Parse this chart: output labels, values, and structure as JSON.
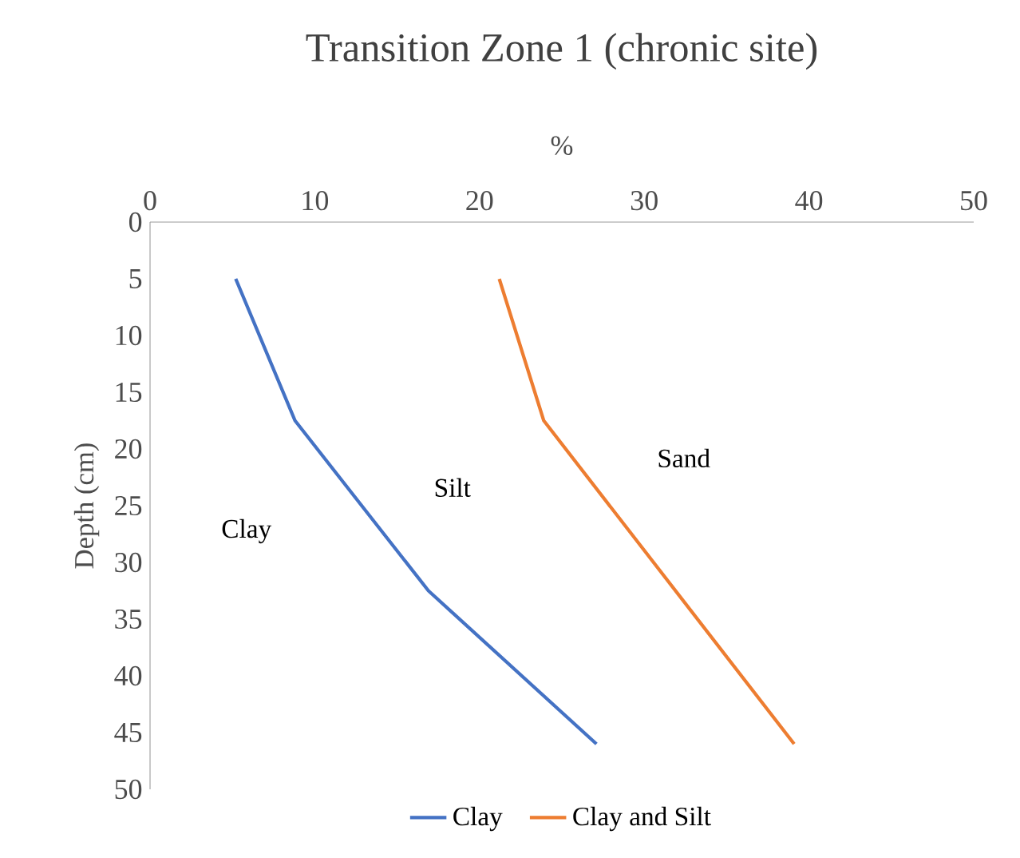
{
  "chart_data": {
    "type": "line",
    "title": "Transition Zone 1 (chronic site)",
    "xlabel": "%",
    "ylabel": "Depth (cm)",
    "series": [
      {
        "name": "Clay",
        "color": "#4472c4",
        "x": [
          5.2,
          8.8,
          16.9,
          27.1
        ],
        "values": [
          5,
          17.5,
          32.5,
          46
        ]
      },
      {
        "name": "Clay and Silt",
        "color": "#ed7d31",
        "x": [
          21.2,
          23.9,
          39.1
        ],
        "values": [
          5,
          17.5,
          46
        ]
      }
    ],
    "xlim": [
      0,
      50
    ],
    "xticks": [
      0,
      10,
      20,
      30,
      40,
      50
    ],
    "ylim": [
      50,
      0
    ],
    "yticks": [
      0,
      5,
      10,
      15,
      20,
      25,
      30,
      35,
      40,
      45,
      50
    ],
    "annotations": [
      "Clay",
      "Silt",
      "Sand"
    ],
    "legend": "bottom",
    "marker": "none",
    "line_style": "solid"
  }
}
